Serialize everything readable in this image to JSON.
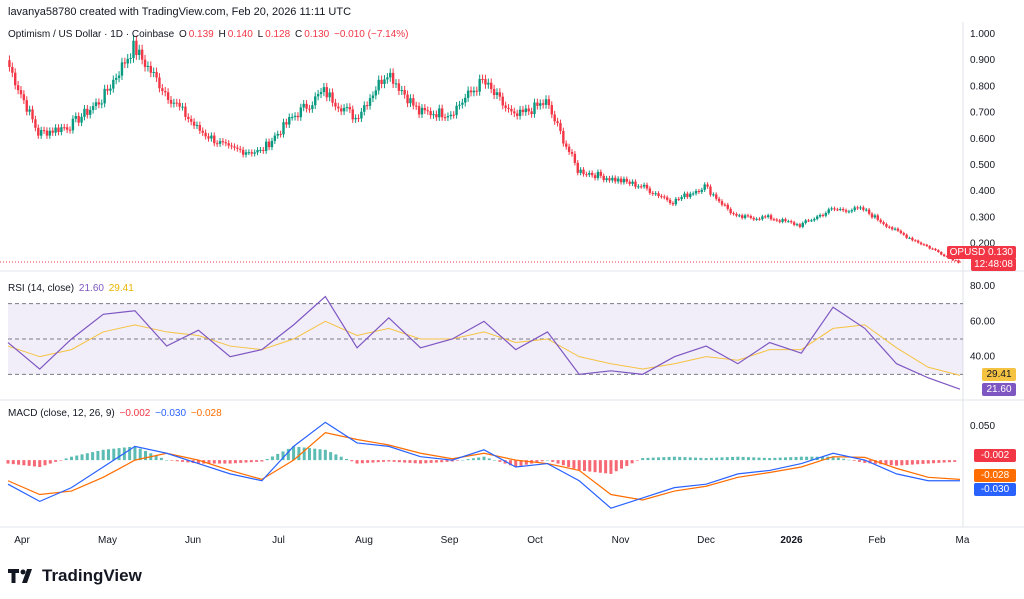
{
  "header": {
    "credit": "lavanya58780 created with TradingView.com, Feb 20, 2026 11:11 UTC"
  },
  "main_legend": {
    "symbol": "Optimism / US Dollar · 1D · Coinbase",
    "o_label": "O",
    "o": "0.139",
    "h_label": "H",
    "h": "0.140",
    "l_label": "L",
    "l": "0.128",
    "c_label": "C",
    "c": "0.130",
    "chg": "−0.010 (−7.14%)"
  },
  "price_axis": {
    "ticks": [
      "1.000",
      "0.900",
      "0.800",
      "0.700",
      "0.600",
      "0.500",
      "0.400",
      "0.300",
      "0.200"
    ]
  },
  "price_tag": {
    "symbol": "OPUSD",
    "price": "0.130",
    "countdown": "12:48:08"
  },
  "rsi_legend": {
    "label": "RSI (14, close)",
    "rsi": "21.60",
    "ma": "29.41"
  },
  "rsi_axis": {
    "ticks": [
      "80.00",
      "60.00",
      "40.00"
    ]
  },
  "macd_legend": {
    "label": "MACD (close, 12, 26, 9)",
    "hist": "−0.002",
    "macd": "−0.030",
    "signal": "−0.028"
  },
  "macd_axis": {
    "ticks": [
      "0.050"
    ]
  },
  "macd_tags": {
    "hist": "-0.002",
    "signal": "-0.028",
    "macd": "-0.030"
  },
  "time_axis": {
    "labels": [
      "Apr",
      "May",
      "Jun",
      "Jul",
      "Aug",
      "Sep",
      "Oct",
      "Nov",
      "Dec",
      "2026",
      "Feb",
      "Ma"
    ]
  },
  "footer": {
    "brand": "TradingView"
  },
  "colors": {
    "up": "#089981",
    "down": "#f23645",
    "rsi": "#7e57c2",
    "rsi_ma": "#f5c242",
    "macd": "#2962ff",
    "signal": "#ff6d00"
  },
  "chart_data": [
    {
      "type": "candlestick",
      "title": "Optimism / US Dollar · 1D · Coinbase",
      "ylim": [
        0.13,
        1.0
      ],
      "x": [
        "Mar 20",
        "Apr 1",
        "Apr 15",
        "May 1",
        "May 10",
        "May 20",
        "Jun 1",
        "Jun 15",
        "Jul 1",
        "Jul 15",
        "Jul 25",
        "Aug 5",
        "Aug 15",
        "Sep 1",
        "Sep 15",
        "Sep 25",
        "Oct 5",
        "Oct 10",
        "Oct 11",
        "Oct 20",
        "Nov 1",
        "Nov 10",
        "Nov 20",
        "Dec 1",
        "Dec 15",
        "Jan 1",
        "Jan 10",
        "Jan 20",
        "Feb 1",
        "Feb 10",
        "Feb 20"
      ],
      "close": [
        0.9,
        0.62,
        0.65,
        0.75,
        0.95,
        0.78,
        0.64,
        0.56,
        0.55,
        0.68,
        0.78,
        0.68,
        0.86,
        0.7,
        0.7,
        0.82,
        0.68,
        0.74,
        0.48,
        0.45,
        0.42,
        0.36,
        0.42,
        0.3,
        0.3,
        0.27,
        0.33,
        0.33,
        0.25,
        0.19,
        0.13
      ]
    },
    {
      "type": "line",
      "title": "RSI (14, close)",
      "ylim": [
        20,
        80
      ],
      "x": [
        "Mar 20",
        "Apr 1",
        "Apr 15",
        "May 1",
        "May 10",
        "May 20",
        "Jun 1",
        "Jun 15",
        "Jul 1",
        "Jul 15",
        "Jul 25",
        "Aug 5",
        "Aug 15",
        "Sep 1",
        "Sep 15",
        "Sep 25",
        "Oct 5",
        "Oct 10",
        "Oct 11",
        "Oct 20",
        "Nov 1",
        "Nov 10",
        "Nov 20",
        "Dec 1",
        "Dec 15",
        "Jan 1",
        "Jan 10",
        "Jan 20",
        "Feb 1",
        "Feb 10",
        "Feb 20"
      ],
      "series": [
        {
          "name": "RSI",
          "values": [
            48,
            33,
            50,
            64,
            66,
            46,
            55,
            40,
            44,
            58,
            74,
            45,
            62,
            45,
            50,
            60,
            44,
            54,
            30,
            32,
            30,
            40,
            46,
            36,
            48,
            42,
            68,
            56,
            36,
            28,
            21.6
          ]
        },
        {
          "name": "RSI-based MA",
          "values": [
            46,
            40,
            44,
            54,
            58,
            54,
            52,
            46,
            44,
            50,
            60,
            52,
            56,
            50,
            50,
            54,
            48,
            50,
            40,
            36,
            33,
            36,
            40,
            38,
            44,
            44,
            56,
            58,
            45,
            34,
            29.41
          ]
        }
      ]
    },
    {
      "type": "line",
      "title": "MACD (close, 12, 26, 9)",
      "ylim": [
        -0.09,
        0.07
      ],
      "x": [
        "Mar 20",
        "Apr 1",
        "Apr 15",
        "May 1",
        "May 10",
        "May 20",
        "Jun 1",
        "Jun 15",
        "Jul 1",
        "Jul 15",
        "Jul 25",
        "Aug 5",
        "Aug 15",
        "Sep 1",
        "Sep 15",
        "Sep 25",
        "Oct 5",
        "Oct 10",
        "Oct 11",
        "Oct 20",
        "Nov 1",
        "Nov 10",
        "Nov 20",
        "Dec 1",
        "Dec 15",
        "Jan 1",
        "Jan 10",
        "Jan 20",
        "Feb 1",
        "Feb 10",
        "Feb 20"
      ],
      "series": [
        {
          "name": "MACD",
          "values": [
            -0.035,
            -0.06,
            -0.04,
            -0.01,
            0.02,
            0.01,
            -0.005,
            -0.02,
            -0.03,
            0.02,
            0.055,
            0.025,
            0.02,
            0.005,
            0.0,
            0.015,
            -0.01,
            -0.005,
            -0.03,
            -0.07,
            -0.055,
            -0.04,
            -0.035,
            -0.02,
            -0.015,
            -0.005,
            0.01,
            0.0,
            -0.02,
            -0.03,
            -0.03
          ]
        },
        {
          "name": "Signal",
          "values": [
            -0.03,
            -0.05,
            -0.045,
            -0.025,
            0.0,
            0.01,
            0.0,
            -0.015,
            -0.028,
            0.0,
            0.04,
            0.03,
            0.022,
            0.01,
            0.002,
            0.01,
            0.0,
            -0.005,
            -0.015,
            -0.05,
            -0.058,
            -0.045,
            -0.038,
            -0.025,
            -0.018,
            -0.01,
            0.005,
            0.004,
            -0.012,
            -0.025,
            -0.028
          ]
        },
        {
          "name": "Histogram",
          "values": [
            -0.005,
            -0.01,
            0.005,
            0.015,
            0.02,
            0.0,
            -0.005,
            -0.005,
            -0.002,
            0.02,
            0.015,
            -0.005,
            -0.002,
            -0.005,
            -0.002,
            0.005,
            -0.01,
            0.0,
            -0.015,
            -0.02,
            0.003,
            0.005,
            0.003,
            0.005,
            0.003,
            0.005,
            0.005,
            -0.004,
            -0.008,
            -0.005,
            -0.002
          ]
        }
      ]
    }
  ]
}
